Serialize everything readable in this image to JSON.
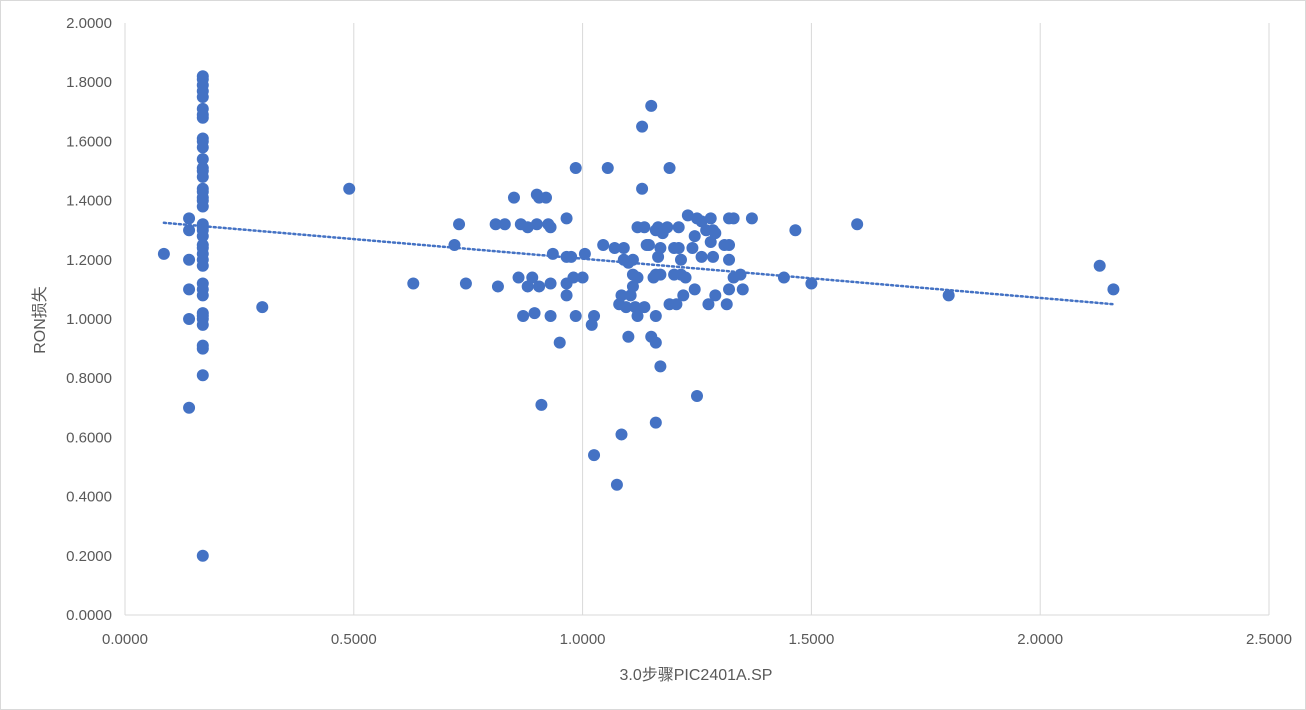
{
  "chart_data": {
    "type": "scatter",
    "title": "",
    "xlabel": "3.0步骤PIC2401A.SP",
    "ylabel": "RON损失",
    "xlim": [
      0,
      2.5
    ],
    "ylim": [
      0,
      2.0
    ],
    "x_ticks": [
      "0.0000",
      "0.5000",
      "1.0000",
      "1.5000",
      "2.0000",
      "2.5000"
    ],
    "y_ticks": [
      "0.0000",
      "0.2000",
      "0.4000",
      "0.6000",
      "0.8000",
      "1.0000",
      "1.2000",
      "1.4000",
      "1.6000",
      "1.8000",
      "2.0000"
    ],
    "grid": "vertical major gridlines",
    "marker_color": "#4472C4",
    "trendline": {
      "type": "linear",
      "style": "dotted",
      "color": "#4472C4",
      "x": [
        0.085,
        2.16
      ],
      "y": [
        1.325,
        1.05
      ]
    },
    "series": [
      {
        "points": [
          [
            0.085,
            1.22
          ],
          [
            0.14,
            1.34
          ],
          [
            0.14,
            1.3
          ],
          [
            0.14,
            1.2
          ],
          [
            0.14,
            1.1
          ],
          [
            0.14,
            1.0
          ],
          [
            0.14,
            0.7
          ],
          [
            0.17,
            1.82
          ],
          [
            0.17,
            1.81
          ],
          [
            0.17,
            1.79
          ],
          [
            0.17,
            1.77
          ],
          [
            0.17,
            1.75
          ],
          [
            0.17,
            1.71
          ],
          [
            0.17,
            1.69
          ],
          [
            0.17,
            1.68
          ],
          [
            0.17,
            1.61
          ],
          [
            0.17,
            1.6
          ],
          [
            0.17,
            1.58
          ],
          [
            0.17,
            1.54
          ],
          [
            0.17,
            1.51
          ],
          [
            0.17,
            1.5
          ],
          [
            0.17,
            1.48
          ],
          [
            0.17,
            1.44
          ],
          [
            0.17,
            1.43
          ],
          [
            0.17,
            1.41
          ],
          [
            0.17,
            1.4
          ],
          [
            0.17,
            1.38
          ],
          [
            0.17,
            1.32
          ],
          [
            0.17,
            1.31
          ],
          [
            0.17,
            1.3
          ],
          [
            0.17,
            1.28
          ],
          [
            0.17,
            1.25
          ],
          [
            0.17,
            1.24
          ],
          [
            0.17,
            1.22
          ],
          [
            0.17,
            1.2
          ],
          [
            0.17,
            1.18
          ],
          [
            0.17,
            1.12
          ],
          [
            0.17,
            1.1
          ],
          [
            0.17,
            1.08
          ],
          [
            0.17,
            1.02
          ],
          [
            0.17,
            1.01
          ],
          [
            0.17,
            1.0
          ],
          [
            0.17,
            0.98
          ],
          [
            0.17,
            0.91
          ],
          [
            0.17,
            0.9
          ],
          [
            0.17,
            0.81
          ],
          [
            0.17,
            0.2
          ],
          [
            0.3,
            1.04
          ],
          [
            0.49,
            1.44
          ],
          [
            0.63,
            1.12
          ],
          [
            0.72,
            1.25
          ],
          [
            0.73,
            1.32
          ],
          [
            0.745,
            1.12
          ],
          [
            0.81,
            1.32
          ],
          [
            0.815,
            1.11
          ],
          [
            0.83,
            1.32
          ],
          [
            0.85,
            1.41
          ],
          [
            0.86,
            1.14
          ],
          [
            0.865,
            1.32
          ],
          [
            0.87,
            1.01
          ],
          [
            0.88,
            1.31
          ],
          [
            0.88,
            1.11
          ],
          [
            0.89,
            1.14
          ],
          [
            0.895,
            1.02
          ],
          [
            0.9,
            1.32
          ],
          [
            0.9,
            1.42
          ],
          [
            0.905,
            1.41
          ],
          [
            0.905,
            1.11
          ],
          [
            0.91,
            0.71
          ],
          [
            0.92,
            1.41
          ],
          [
            0.925,
            1.32
          ],
          [
            0.93,
            1.31
          ],
          [
            0.93,
            1.01
          ],
          [
            0.93,
            1.12
          ],
          [
            0.935,
            1.22
          ],
          [
            0.95,
            0.92
          ],
          [
            0.965,
            1.34
          ],
          [
            0.965,
            1.21
          ],
          [
            0.965,
            1.12
          ],
          [
            0.965,
            1.08
          ],
          [
            0.975,
            1.21
          ],
          [
            0.98,
            1.14
          ],
          [
            0.985,
            1.51
          ],
          [
            0.985,
            1.01
          ],
          [
            1.0,
            1.14
          ],
          [
            1.005,
            1.22
          ],
          [
            1.02,
            0.98
          ],
          [
            1.025,
            1.01
          ],
          [
            1.025,
            0.54
          ],
          [
            1.045,
            1.25
          ],
          [
            1.055,
            1.51
          ],
          [
            1.07,
            1.24
          ],
          [
            1.075,
            0.44
          ],
          [
            1.08,
            1.05
          ],
          [
            1.085,
            1.08
          ],
          [
            1.085,
            0.61
          ],
          [
            1.09,
            1.24
          ],
          [
            1.09,
            1.2
          ],
          [
            1.095,
            1.04
          ],
          [
            1.1,
            1.19
          ],
          [
            1.1,
            0.94
          ],
          [
            1.105,
            1.08
          ],
          [
            1.11,
            1.2
          ],
          [
            1.11,
            1.15
          ],
          [
            1.11,
            1.11
          ],
          [
            1.115,
            1.04
          ],
          [
            1.12,
            1.14
          ],
          [
            1.12,
            1.01
          ],
          [
            1.12,
            1.31
          ],
          [
            1.13,
            1.65
          ],
          [
            1.13,
            1.44
          ],
          [
            1.135,
            1.31
          ],
          [
            1.135,
            1.04
          ],
          [
            1.14,
            1.25
          ],
          [
            1.145,
            1.25
          ],
          [
            1.15,
            1.72
          ],
          [
            1.15,
            0.94
          ],
          [
            1.155,
            1.14
          ],
          [
            1.16,
            1.3
          ],
          [
            1.16,
            1.15
          ],
          [
            1.16,
            1.01
          ],
          [
            1.16,
            0.92
          ],
          [
            1.16,
            0.65
          ],
          [
            1.165,
            1.31
          ],
          [
            1.165,
            1.21
          ],
          [
            1.17,
            1.24
          ],
          [
            1.17,
            1.15
          ],
          [
            1.17,
            0.84
          ],
          [
            1.175,
            1.29
          ],
          [
            1.185,
            1.31
          ],
          [
            1.19,
            1.51
          ],
          [
            1.19,
            1.05
          ],
          [
            1.2,
            1.24
          ],
          [
            1.2,
            1.15
          ],
          [
            1.205,
            1.05
          ],
          [
            1.21,
            1.31
          ],
          [
            1.21,
            1.24
          ],
          [
            1.215,
            1.2
          ],
          [
            1.215,
            1.15
          ],
          [
            1.22,
            1.08
          ],
          [
            1.225,
            1.14
          ],
          [
            1.23,
            1.35
          ],
          [
            1.24,
            1.24
          ],
          [
            1.245,
            1.28
          ],
          [
            1.245,
            1.1
          ],
          [
            1.25,
            1.34
          ],
          [
            1.25,
            0.74
          ],
          [
            1.26,
            1.33
          ],
          [
            1.26,
            1.21
          ],
          [
            1.27,
            1.3
          ],
          [
            1.275,
            1.05
          ],
          [
            1.28,
            1.34
          ],
          [
            1.28,
            1.26
          ],
          [
            1.285,
            1.3
          ],
          [
            1.285,
            1.21
          ],
          [
            1.29,
            1.29
          ],
          [
            1.29,
            1.08
          ],
          [
            1.31,
            1.25
          ],
          [
            1.315,
            1.05
          ],
          [
            1.32,
            1.34
          ],
          [
            1.32,
            1.25
          ],
          [
            1.32,
            1.2
          ],
          [
            1.32,
            1.1
          ],
          [
            1.33,
            1.34
          ],
          [
            1.33,
            1.14
          ],
          [
            1.345,
            1.15
          ],
          [
            1.35,
            1.1
          ],
          [
            1.37,
            1.34
          ],
          [
            1.44,
            1.14
          ],
          [
            1.465,
            1.3
          ],
          [
            1.5,
            1.12
          ],
          [
            1.6,
            1.32
          ],
          [
            1.8,
            1.08
          ],
          [
            2.13,
            1.18
          ],
          [
            2.16,
            1.1
          ]
        ]
      }
    ]
  }
}
